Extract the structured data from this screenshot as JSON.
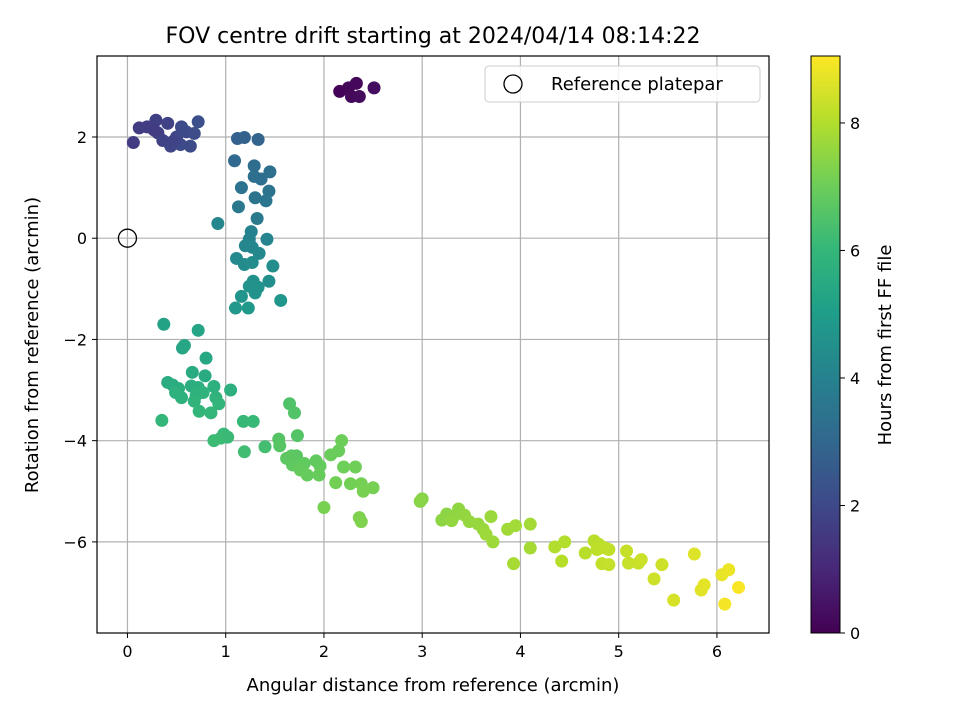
{
  "chart_data": {
    "type": "scatter",
    "title": "FOV centre drift starting at 2024/04/14 08:14:22",
    "xlabel": "Angular distance from reference (arcmin)",
    "ylabel": "Rotation from reference (arcmin)",
    "xlim": [
      -0.31,
      6.53
    ],
    "ylim": [
      -7.8,
      3.6
    ],
    "xticks": [
      0,
      1,
      2,
      3,
      4,
      5,
      6
    ],
    "yticks": [
      -6,
      -4,
      -2,
      0,
      2
    ],
    "grid": true,
    "legend": {
      "label": "Reference platepar",
      "placement": "top-right"
    },
    "reference_point": {
      "x": 0,
      "y": 0
    },
    "colorbar": {
      "label": "Hours from first FF file",
      "min": 0,
      "max": 9.05,
      "ticks": [
        0,
        2,
        4,
        6,
        8
      ],
      "colormap": [
        "#440154",
        "#482878",
        "#3e4989",
        "#31688e",
        "#26828e",
        "#1f9e89",
        "#35b779",
        "#6ece58",
        "#b5de2b",
        "#fde725"
      ]
    },
    "points": [
      {
        "x": 2.16,
        "y": 2.9,
        "h": 0.05
      },
      {
        "x": 2.25,
        "y": 2.97,
        "h": 0.12
      },
      {
        "x": 2.33,
        "y": 3.06,
        "h": 0.15
      },
      {
        "x": 2.28,
        "y": 2.8,
        "h": 0.2
      },
      {
        "x": 2.36,
        "y": 2.8,
        "h": 0.25
      },
      {
        "x": 2.51,
        "y": 2.97,
        "h": 0.3
      },
      {
        "x": 0.06,
        "y": 1.89,
        "h": 1.6
      },
      {
        "x": 0.12,
        "y": 2.18,
        "h": 1.6
      },
      {
        "x": 0.2,
        "y": 2.2,
        "h": 1.65
      },
      {
        "x": 0.29,
        "y": 2.33,
        "h": 1.7
      },
      {
        "x": 0.31,
        "y": 2.08,
        "h": 1.72
      },
      {
        "x": 0.36,
        "y": 1.93,
        "h": 1.8
      },
      {
        "x": 0.41,
        "y": 2.27,
        "h": 1.8
      },
      {
        "x": 0.44,
        "y": 1.82,
        "h": 1.9
      },
      {
        "x": 0.5,
        "y": 2.0,
        "h": 1.95
      },
      {
        "x": 0.54,
        "y": 1.85,
        "h": 2.0
      },
      {
        "x": 0.55,
        "y": 2.2,
        "h": 2.0
      },
      {
        "x": 0.6,
        "y": 2.1,
        "h": 2.05
      },
      {
        "x": 0.64,
        "y": 1.82,
        "h": 2.1
      },
      {
        "x": 0.68,
        "y": 2.07,
        "h": 2.15
      },
      {
        "x": 0.72,
        "y": 2.3,
        "h": 2.2
      },
      {
        "x": 0.27,
        "y": 2.14,
        "h": 1.62
      },
      {
        "x": 0.47,
        "y": 1.92,
        "h": 1.85
      },
      {
        "x": 1.12,
        "y": 1.97,
        "h": 2.8
      },
      {
        "x": 1.19,
        "y": 1.99,
        "h": 2.85
      },
      {
        "x": 1.33,
        "y": 1.95,
        "h": 2.9
      },
      {
        "x": 1.09,
        "y": 1.53,
        "h": 3.1
      },
      {
        "x": 1.29,
        "y": 1.43,
        "h": 3.2
      },
      {
        "x": 1.36,
        "y": 1.17,
        "h": 3.25
      },
      {
        "x": 1.45,
        "y": 1.31,
        "h": 3.3
      },
      {
        "x": 1.29,
        "y": 1.22,
        "h": 3.3
      },
      {
        "x": 1.16,
        "y": 1.0,
        "h": 3.4
      },
      {
        "x": 1.44,
        "y": 0.93,
        "h": 3.45
      },
      {
        "x": 1.3,
        "y": 0.8,
        "h": 3.5
      },
      {
        "x": 1.41,
        "y": 0.74,
        "h": 3.55
      },
      {
        "x": 1.13,
        "y": 0.62,
        "h": 3.6
      },
      {
        "x": 1.32,
        "y": 0.39,
        "h": 3.7
      },
      {
        "x": 0.92,
        "y": 0.29,
        "h": 4.2
      },
      {
        "x": 1.26,
        "y": 0.13,
        "h": 4.0
      },
      {
        "x": 1.24,
        "y": -0.02,
        "h": 4.05
      },
      {
        "x": 1.42,
        "y": -0.02,
        "h": 4.1
      },
      {
        "x": 1.2,
        "y": -0.15,
        "h": 4.15
      },
      {
        "x": 1.27,
        "y": -0.18,
        "h": 4.2
      },
      {
        "x": 1.34,
        "y": -0.3,
        "h": 4.25
      },
      {
        "x": 1.11,
        "y": -0.4,
        "h": 4.3
      },
      {
        "x": 1.19,
        "y": -0.52,
        "h": 4.35
      },
      {
        "x": 1.27,
        "y": -0.48,
        "h": 4.4
      },
      {
        "x": 1.48,
        "y": -0.55,
        "h": 4.45
      },
      {
        "x": 1.44,
        "y": -0.85,
        "h": 4.5
      },
      {
        "x": 1.28,
        "y": -0.85,
        "h": 4.55
      },
      {
        "x": 1.24,
        "y": -0.95,
        "h": 4.6
      },
      {
        "x": 1.33,
        "y": -0.97,
        "h": 4.62
      },
      {
        "x": 1.3,
        "y": -1.08,
        "h": 4.65
      },
      {
        "x": 1.16,
        "y": -1.15,
        "h": 4.7
      },
      {
        "x": 1.56,
        "y": -1.23,
        "h": 4.75
      },
      {
        "x": 1.1,
        "y": -1.38,
        "h": 4.8
      },
      {
        "x": 1.23,
        "y": -1.38,
        "h": 4.85
      },
      {
        "x": 0.37,
        "y": -1.7,
        "h": 5.2
      },
      {
        "x": 0.72,
        "y": -1.82,
        "h": 5.3
      },
      {
        "x": 0.58,
        "y": -2.12,
        "h": 5.35
      },
      {
        "x": 0.56,
        "y": -2.17,
        "h": 5.35
      },
      {
        "x": 0.8,
        "y": -2.37,
        "h": 5.4
      },
      {
        "x": 0.66,
        "y": -2.65,
        "h": 5.5
      },
      {
        "x": 0.79,
        "y": -2.72,
        "h": 5.5
      },
      {
        "x": 0.41,
        "y": -2.85,
        "h": 5.55
      },
      {
        "x": 0.46,
        "y": -2.9,
        "h": 5.6
      },
      {
        "x": 0.52,
        "y": -2.97,
        "h": 5.62
      },
      {
        "x": 0.65,
        "y": -2.92,
        "h": 5.65
      },
      {
        "x": 0.72,
        "y": -2.95,
        "h": 5.68
      },
      {
        "x": 0.88,
        "y": -2.93,
        "h": 5.7
      },
      {
        "x": 1.05,
        "y": -3.0,
        "h": 5.72
      },
      {
        "x": 0.49,
        "y": -3.05,
        "h": 5.75
      },
      {
        "x": 0.55,
        "y": -3.15,
        "h": 5.78
      },
      {
        "x": 0.7,
        "y": -3.1,
        "h": 5.8
      },
      {
        "x": 0.77,
        "y": -3.05,
        "h": 5.82
      },
      {
        "x": 0.9,
        "y": -3.15,
        "h": 5.85
      },
      {
        "x": 0.68,
        "y": -3.22,
        "h": 5.88
      },
      {
        "x": 0.93,
        "y": -3.27,
        "h": 5.9
      },
      {
        "x": 0.73,
        "y": -3.42,
        "h": 5.95
      },
      {
        "x": 0.85,
        "y": -3.45,
        "h": 5.97
      },
      {
        "x": 0.35,
        "y": -3.6,
        "h": 6.0
      },
      {
        "x": 1.18,
        "y": -3.62,
        "h": 6.05
      },
      {
        "x": 1.28,
        "y": -3.62,
        "h": 6.08
      },
      {
        "x": 0.98,
        "y": -3.87,
        "h": 6.1
      },
      {
        "x": 1.02,
        "y": -3.93,
        "h": 6.12
      },
      {
        "x": 0.95,
        "y": -3.95,
        "h": 6.15
      },
      {
        "x": 0.88,
        "y": -4.0,
        "h": 6.18
      },
      {
        "x": 1.19,
        "y": -4.22,
        "h": 6.25
      },
      {
        "x": 1.4,
        "y": -4.12,
        "h": 6.3
      },
      {
        "x": 1.65,
        "y": -3.27,
        "h": 6.5
      },
      {
        "x": 1.7,
        "y": -3.45,
        "h": 6.55
      },
      {
        "x": 1.73,
        "y": -3.9,
        "h": 6.6
      },
      {
        "x": 1.54,
        "y": -3.97,
        "h": 6.62
      },
      {
        "x": 1.55,
        "y": -4.1,
        "h": 6.65
      },
      {
        "x": 1.67,
        "y": -4.3,
        "h": 6.7
      },
      {
        "x": 1.72,
        "y": -4.3,
        "h": 6.72
      },
      {
        "x": 1.62,
        "y": -4.35,
        "h": 6.75
      },
      {
        "x": 1.68,
        "y": -4.48,
        "h": 6.78
      },
      {
        "x": 1.8,
        "y": -4.45,
        "h": 6.8
      },
      {
        "x": 1.92,
        "y": -4.4,
        "h": 6.82
      },
      {
        "x": 1.96,
        "y": -4.5,
        "h": 6.85
      },
      {
        "x": 1.76,
        "y": -4.58,
        "h": 6.88
      },
      {
        "x": 1.83,
        "y": -4.68,
        "h": 6.9
      },
      {
        "x": 1.95,
        "y": -4.68,
        "h": 6.92
      },
      {
        "x": 2.07,
        "y": -4.28,
        "h": 6.95
      },
      {
        "x": 2.15,
        "y": -4.2,
        "h": 6.97
      },
      {
        "x": 2.18,
        "y": -4.0,
        "h": 7.0
      },
      {
        "x": 2.2,
        "y": -4.52,
        "h": 7.02
      },
      {
        "x": 2.32,
        "y": -4.52,
        "h": 7.05
      },
      {
        "x": 2.12,
        "y": -4.83,
        "h": 7.08
      },
      {
        "x": 2.27,
        "y": -4.85,
        "h": 7.1
      },
      {
        "x": 2.38,
        "y": -4.85,
        "h": 7.12
      },
      {
        "x": 2.5,
        "y": -4.93,
        "h": 7.15
      },
      {
        "x": 2.4,
        "y": -5.0,
        "h": 7.18
      },
      {
        "x": 2.0,
        "y": -5.32,
        "h": 7.2
      },
      {
        "x": 2.36,
        "y": -5.52,
        "h": 7.25
      },
      {
        "x": 2.38,
        "y": -5.6,
        "h": 7.28
      },
      {
        "x": 3.0,
        "y": -5.15,
        "h": 7.4
      },
      {
        "x": 2.98,
        "y": -5.2,
        "h": 7.42
      },
      {
        "x": 3.25,
        "y": -5.45,
        "h": 7.45
      },
      {
        "x": 3.2,
        "y": -5.57,
        "h": 7.48
      },
      {
        "x": 3.32,
        "y": -5.5,
        "h": 7.5
      },
      {
        "x": 3.37,
        "y": -5.35,
        "h": 7.52
      },
      {
        "x": 3.3,
        "y": -5.58,
        "h": 7.55
      },
      {
        "x": 3.43,
        "y": -5.47,
        "h": 7.57
      },
      {
        "x": 3.48,
        "y": -5.6,
        "h": 7.6
      },
      {
        "x": 3.57,
        "y": -5.65,
        "h": 7.62
      },
      {
        "x": 3.62,
        "y": -5.75,
        "h": 7.65
      },
      {
        "x": 3.7,
        "y": -5.5,
        "h": 7.68
      },
      {
        "x": 3.65,
        "y": -5.85,
        "h": 7.7
      },
      {
        "x": 3.72,
        "y": -6.0,
        "h": 7.72
      },
      {
        "x": 3.87,
        "y": -5.75,
        "h": 7.75
      },
      {
        "x": 3.95,
        "y": -5.68,
        "h": 7.78
      },
      {
        "x": 4.1,
        "y": -5.65,
        "h": 7.8
      },
      {
        "x": 4.1,
        "y": -6.12,
        "h": 7.82
      },
      {
        "x": 3.93,
        "y": -6.43,
        "h": 7.85
      },
      {
        "x": 4.35,
        "y": -6.1,
        "h": 8.0
      },
      {
        "x": 4.45,
        "y": -6.0,
        "h": 8.02
      },
      {
        "x": 4.42,
        "y": -6.38,
        "h": 8.05
      },
      {
        "x": 4.66,
        "y": -6.22,
        "h": 8.08
      },
      {
        "x": 4.75,
        "y": -5.98,
        "h": 8.1
      },
      {
        "x": 4.8,
        "y": -6.05,
        "h": 8.12
      },
      {
        "x": 4.78,
        "y": -6.15,
        "h": 8.15
      },
      {
        "x": 4.86,
        "y": -6.12,
        "h": 8.18
      },
      {
        "x": 4.9,
        "y": -6.15,
        "h": 8.2
      },
      {
        "x": 4.83,
        "y": -6.43,
        "h": 8.22
      },
      {
        "x": 4.9,
        "y": -6.45,
        "h": 8.25
      },
      {
        "x": 5.08,
        "y": -6.18,
        "h": 8.28
      },
      {
        "x": 5.1,
        "y": -6.42,
        "h": 8.3
      },
      {
        "x": 5.2,
        "y": -6.42,
        "h": 8.32
      },
      {
        "x": 5.23,
        "y": -6.35,
        "h": 8.35
      },
      {
        "x": 5.36,
        "y": -6.73,
        "h": 8.38
      },
      {
        "x": 5.44,
        "y": -6.45,
        "h": 8.4
      },
      {
        "x": 5.56,
        "y": -7.15,
        "h": 8.5
      },
      {
        "x": 5.77,
        "y": -6.24,
        "h": 8.6
      },
      {
        "x": 5.84,
        "y": -6.95,
        "h": 8.65
      },
      {
        "x": 5.87,
        "y": -6.85,
        "h": 8.7
      },
      {
        "x": 6.05,
        "y": -6.65,
        "h": 8.75
      },
      {
        "x": 6.12,
        "y": -6.55,
        "h": 8.8
      },
      {
        "x": 6.08,
        "y": -7.23,
        "h": 8.9
      },
      {
        "x": 6.22,
        "y": -6.9,
        "h": 9.0
      }
    ]
  }
}
